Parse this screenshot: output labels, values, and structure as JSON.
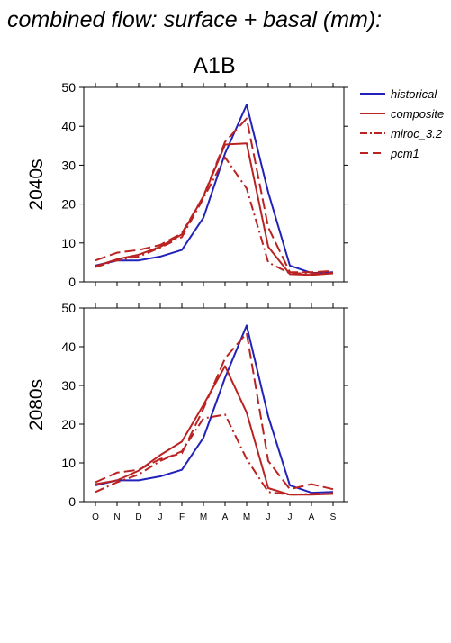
{
  "figure": {
    "title": "combined flow: surface + basal (mm):",
    "scenario": "A1B"
  },
  "legend": {
    "placement": "right",
    "items": [
      {
        "name": "historical",
        "color": "#2222bb",
        "dash": "solid"
      },
      {
        "name": "composite",
        "color": "#bb2222",
        "dash": "solid"
      },
      {
        "name": "miroc_3.2",
        "color": "#bb2222",
        "dash": "dash-dot"
      },
      {
        "name": "pcm1",
        "color": "#bb2222",
        "dash": "dash"
      }
    ]
  },
  "chart_data": [
    {
      "type": "line",
      "title": "A1B",
      "ylabel": "2040s",
      "xlabel": "",
      "ylim": [
        0,
        50
      ],
      "yticks": [
        0,
        10,
        20,
        30,
        40,
        50
      ],
      "grid": false,
      "categories": [
        "O",
        "N",
        "D",
        "J",
        "F",
        "M",
        "A",
        "M",
        "J",
        "J",
        "A",
        "S"
      ],
      "series": [
        {
          "name": "historical",
          "values": [
            4.2,
            5.5,
            5.5,
            6.5,
            8.2,
            16.5,
            33,
            45.5,
            23,
            4.2,
            2.3,
            2.5
          ]
        },
        {
          "name": "composite",
          "values": [
            4.0,
            5.8,
            7.0,
            9.0,
            12.2,
            22,
            35.3,
            35.6,
            9,
            2.0,
            1.8,
            2.2
          ]
        },
        {
          "name": "miroc_3.2",
          "values": [
            3.8,
            5.5,
            6.5,
            8.8,
            11.5,
            21.5,
            32,
            24,
            5,
            2.2,
            2.2,
            2.3
          ]
        },
        {
          "name": "pcm1",
          "values": [
            5.5,
            7.5,
            8.2,
            9.5,
            12.5,
            22,
            36,
            42,
            14,
            2.5,
            2.5,
            2.8
          ]
        }
      ]
    },
    {
      "type": "line",
      "title": "",
      "ylabel": "2080s",
      "xlabel": "",
      "ylim": [
        0,
        50
      ],
      "yticks": [
        0,
        10,
        20,
        30,
        40,
        50
      ],
      "grid": false,
      "categories": [
        "O",
        "N",
        "D",
        "J",
        "F",
        "M",
        "A",
        "M",
        "J",
        "J",
        "A",
        "S"
      ],
      "series": [
        {
          "name": "historical",
          "values": [
            4.2,
            5.5,
            5.5,
            6.5,
            8.2,
            16.5,
            32,
            45.5,
            22,
            4.2,
            2.3,
            2.5
          ]
        },
        {
          "name": "composite",
          "values": [
            4.5,
            5.5,
            8.0,
            12,
            15.5,
            25,
            35,
            23,
            3.5,
            1.8,
            1.8,
            2.0
          ]
        },
        {
          "name": "miroc_3.2",
          "values": [
            2.5,
            5.0,
            7.0,
            10.5,
            13.0,
            21.5,
            22.5,
            11,
            2.5,
            1.8,
            2.0,
            2.2
          ]
        },
        {
          "name": "pcm1",
          "values": [
            5.0,
            7.5,
            8.2,
            11.0,
            12.5,
            24,
            37,
            43.5,
            10.5,
            3.2,
            4.5,
            3.2
          ]
        }
      ]
    }
  ]
}
